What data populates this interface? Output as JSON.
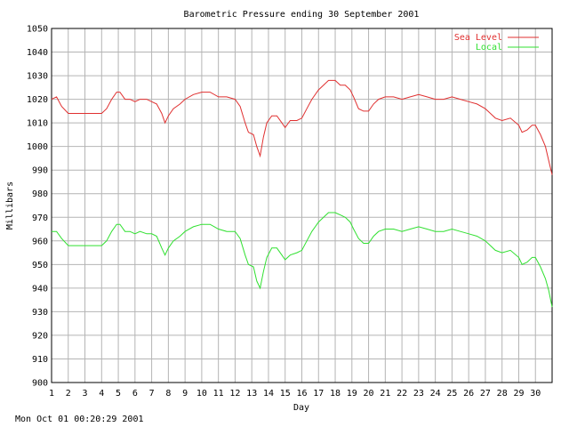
{
  "chart_data": {
    "type": "line",
    "title": "Barometric Pressure ending 30 September 2001",
    "xlabel": "Day",
    "ylabel": "Millibars",
    "xlim": [
      1,
      31
    ],
    "ylim": [
      900,
      1050
    ],
    "x_ticks": [
      "1",
      "2",
      "3",
      "4",
      "5",
      "6",
      "7",
      "8",
      "9",
      "10",
      "11",
      "12",
      "13",
      "14",
      "15",
      "16",
      "17",
      "18",
      "19",
      "20",
      "21",
      "22",
      "23",
      "24",
      "25",
      "26",
      "27",
      "28",
      "29",
      "30"
    ],
    "y_ticks": [
      900,
      910,
      920,
      930,
      940,
      950,
      960,
      970,
      980,
      990,
      1000,
      1010,
      1020,
      1030,
      1040,
      1050
    ],
    "grid": true,
    "legend_position": "top-right",
    "series": [
      {
        "name": "Sea Level",
        "color": "#e03030",
        "points": [
          [
            1.0,
            1020
          ],
          [
            1.3,
            1021
          ],
          [
            1.6,
            1017
          ],
          [
            2.0,
            1014
          ],
          [
            2.5,
            1014
          ],
          [
            3.0,
            1014
          ],
          [
            3.5,
            1014
          ],
          [
            4.0,
            1014
          ],
          [
            4.3,
            1016
          ],
          [
            4.6,
            1020
          ],
          [
            4.9,
            1023
          ],
          [
            5.1,
            1023
          ],
          [
            5.4,
            1020
          ],
          [
            5.7,
            1020
          ],
          [
            6.0,
            1019
          ],
          [
            6.3,
            1020
          ],
          [
            6.7,
            1020
          ],
          [
            7.0,
            1019
          ],
          [
            7.3,
            1018
          ],
          [
            7.6,
            1014
          ],
          [
            7.8,
            1010
          ],
          [
            8.0,
            1013
          ],
          [
            8.3,
            1016
          ],
          [
            8.7,
            1018
          ],
          [
            9.0,
            1020
          ],
          [
            9.5,
            1022
          ],
          [
            10.0,
            1023
          ],
          [
            10.5,
            1023
          ],
          [
            11.0,
            1021
          ],
          [
            11.5,
            1021
          ],
          [
            12.0,
            1020
          ],
          [
            12.3,
            1017
          ],
          [
            12.6,
            1010
          ],
          [
            12.8,
            1006
          ],
          [
            13.1,
            1005
          ],
          [
            13.3,
            1000
          ],
          [
            13.5,
            996
          ],
          [
            13.7,
            1004
          ],
          [
            13.9,
            1010
          ],
          [
            14.2,
            1013
          ],
          [
            14.5,
            1013
          ],
          [
            14.8,
            1010
          ],
          [
            15.0,
            1008
          ],
          [
            15.3,
            1011
          ],
          [
            15.7,
            1011
          ],
          [
            16.0,
            1012
          ],
          [
            16.3,
            1016
          ],
          [
            16.6,
            1020
          ],
          [
            17.0,
            1024
          ],
          [
            17.3,
            1026
          ],
          [
            17.6,
            1028
          ],
          [
            18.0,
            1028
          ],
          [
            18.3,
            1026
          ],
          [
            18.6,
            1026
          ],
          [
            18.9,
            1024
          ],
          [
            19.1,
            1021
          ],
          [
            19.4,
            1016
          ],
          [
            19.7,
            1015
          ],
          [
            20.0,
            1015
          ],
          [
            20.3,
            1018
          ],
          [
            20.6,
            1020
          ],
          [
            21.0,
            1021
          ],
          [
            21.5,
            1021
          ],
          [
            22.0,
            1020
          ],
          [
            22.5,
            1021
          ],
          [
            23.0,
            1022
          ],
          [
            23.5,
            1021
          ],
          [
            24.0,
            1020
          ],
          [
            24.5,
            1020
          ],
          [
            25.0,
            1021
          ],
          [
            25.5,
            1020
          ],
          [
            26.0,
            1019
          ],
          [
            26.5,
            1018
          ],
          [
            27.0,
            1016
          ],
          [
            27.3,
            1014
          ],
          [
            27.6,
            1012
          ],
          [
            28.0,
            1011
          ],
          [
            28.5,
            1012
          ],
          [
            29.0,
            1009
          ],
          [
            29.2,
            1006
          ],
          [
            29.5,
            1007
          ],
          [
            29.8,
            1009
          ],
          [
            30.0,
            1009
          ],
          [
            30.3,
            1005
          ],
          [
            30.6,
            1000
          ],
          [
            30.8,
            994
          ],
          [
            31.0,
            988
          ]
        ]
      },
      {
        "name": "Local",
        "color": "#30e030",
        "points": [
          [
            1.0,
            964
          ],
          [
            1.3,
            964
          ],
          [
            1.6,
            961
          ],
          [
            2.0,
            958
          ],
          [
            2.5,
            958
          ],
          [
            3.0,
            958
          ],
          [
            3.5,
            958
          ],
          [
            4.0,
            958
          ],
          [
            4.3,
            960
          ],
          [
            4.6,
            964
          ],
          [
            4.9,
            967
          ],
          [
            5.1,
            967
          ],
          [
            5.4,
            964
          ],
          [
            5.7,
            964
          ],
          [
            6.0,
            963
          ],
          [
            6.3,
            964
          ],
          [
            6.7,
            963
          ],
          [
            7.0,
            963
          ],
          [
            7.3,
            962
          ],
          [
            7.6,
            957
          ],
          [
            7.8,
            954
          ],
          [
            8.0,
            957
          ],
          [
            8.3,
            960
          ],
          [
            8.7,
            962
          ],
          [
            9.0,
            964
          ],
          [
            9.5,
            966
          ],
          [
            10.0,
            967
          ],
          [
            10.5,
            967
          ],
          [
            11.0,
            965
          ],
          [
            11.5,
            964
          ],
          [
            12.0,
            964
          ],
          [
            12.3,
            961
          ],
          [
            12.6,
            954
          ],
          [
            12.8,
            950
          ],
          [
            13.1,
            949
          ],
          [
            13.3,
            943
          ],
          [
            13.5,
            940
          ],
          [
            13.7,
            947
          ],
          [
            13.9,
            953
          ],
          [
            14.2,
            957
          ],
          [
            14.5,
            957
          ],
          [
            14.8,
            954
          ],
          [
            15.0,
            952
          ],
          [
            15.3,
            954
          ],
          [
            15.7,
            955
          ],
          [
            16.0,
            956
          ],
          [
            16.3,
            960
          ],
          [
            16.6,
            964
          ],
          [
            17.0,
            968
          ],
          [
            17.3,
            970
          ],
          [
            17.6,
            972
          ],
          [
            18.0,
            972
          ],
          [
            18.3,
            971
          ],
          [
            18.6,
            970
          ],
          [
            18.9,
            968
          ],
          [
            19.1,
            965
          ],
          [
            19.4,
            961
          ],
          [
            19.7,
            959
          ],
          [
            20.0,
            959
          ],
          [
            20.3,
            962
          ],
          [
            20.6,
            964
          ],
          [
            21.0,
            965
          ],
          [
            21.5,
            965
          ],
          [
            22.0,
            964
          ],
          [
            22.5,
            965
          ],
          [
            23.0,
            966
          ],
          [
            23.5,
            965
          ],
          [
            24.0,
            964
          ],
          [
            24.5,
            964
          ],
          [
            25.0,
            965
          ],
          [
            25.5,
            964
          ],
          [
            26.0,
            963
          ],
          [
            26.5,
            962
          ],
          [
            27.0,
            960
          ],
          [
            27.3,
            958
          ],
          [
            27.6,
            956
          ],
          [
            28.0,
            955
          ],
          [
            28.5,
            956
          ],
          [
            29.0,
            953
          ],
          [
            29.2,
            950
          ],
          [
            29.5,
            951
          ],
          [
            29.8,
            953
          ],
          [
            30.0,
            953
          ],
          [
            30.3,
            949
          ],
          [
            30.6,
            944
          ],
          [
            30.8,
            939
          ],
          [
            31.0,
            932
          ]
        ]
      }
    ]
  },
  "footer": {
    "timestamp": "Mon Oct 01 00:20:29 2001"
  }
}
